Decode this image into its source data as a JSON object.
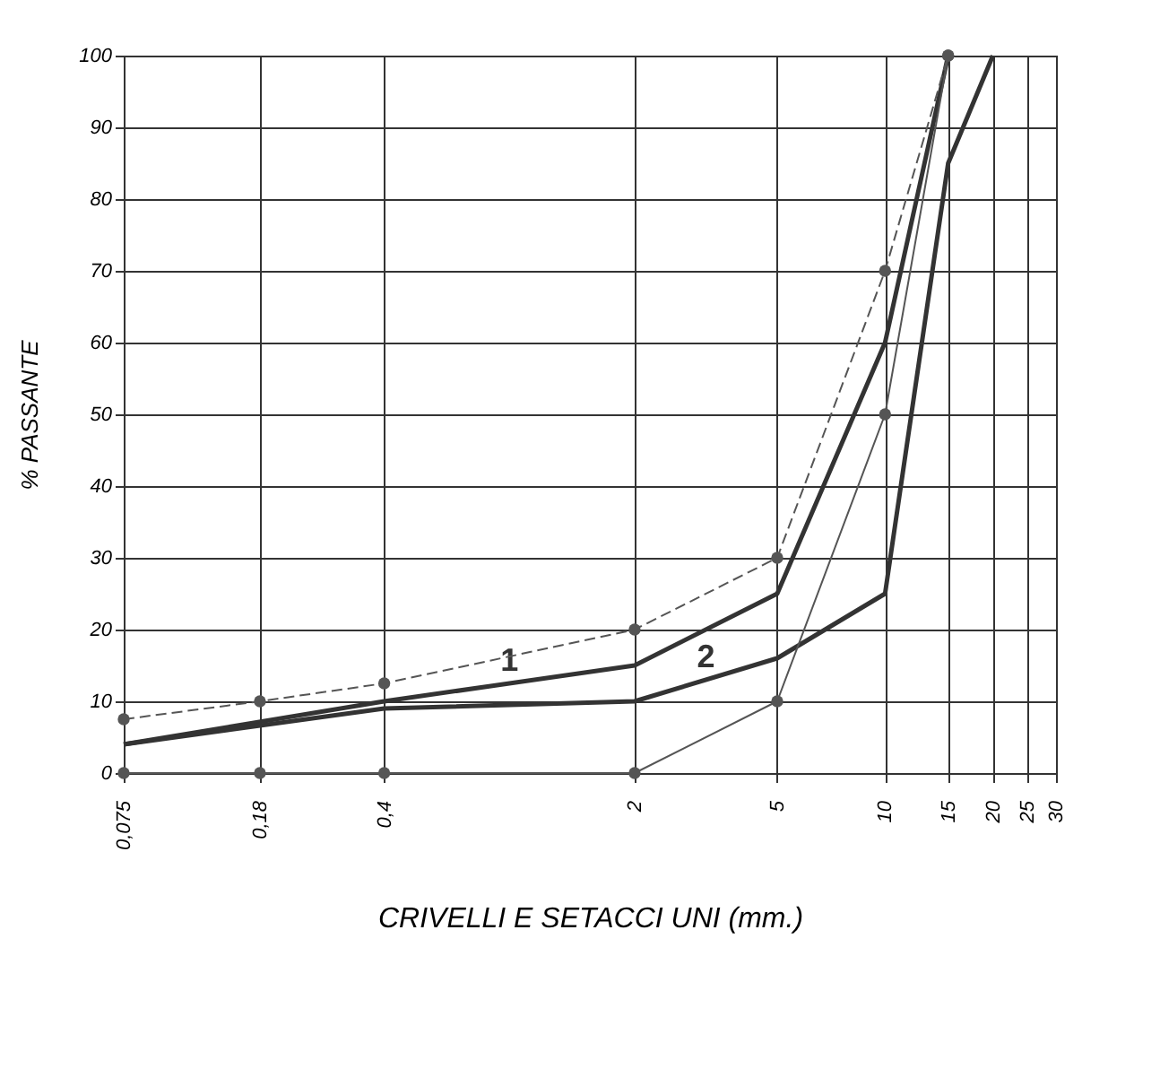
{
  "chart_data": {
    "type": "line",
    "xlabel": "CRIVELLI E SETACCI UNI (mm.)",
    "ylabel": "% PASSANTE",
    "log": "x",
    "grid": true,
    "legend": false,
    "xlim": [
      0.075,
      30
    ],
    "xticks": [
      {
        "value": 0.075,
        "label": "0,075"
      },
      {
        "value": 0.18,
        "label": "0,18"
      },
      {
        "value": 0.4,
        "label": "0,4"
      },
      2,
      5,
      10,
      15,
      20,
      25,
      30
    ],
    "ylim": [
      0,
      100
    ],
    "yticks": [
      0,
      10,
      20,
      30,
      40,
      50,
      60,
      70,
      80,
      90,
      100
    ],
    "series": [
      {
        "color": "#555555",
        "marker": "circle",
        "line_style": "dashed",
        "x": [
          0.075,
          0.18,
          0.4,
          2,
          5,
          10,
          15
        ],
        "values": [
          7.5,
          10,
          12.5,
          20,
          30,
          70,
          100
        ]
      },
      {
        "color": "#555555",
        "marker": "circle",
        "line_style": "solid",
        "x": [
          0.075,
          0.18,
          0.4,
          2,
          5,
          10,
          15
        ],
        "values": [
          0,
          0,
          0,
          0,
          10,
          50,
          100
        ]
      },
      {
        "name": "1",
        "color": "#333333",
        "marker": "none",
        "line_style": "solid",
        "x": [
          0.075,
          0.4,
          2,
          5,
          10,
          15
        ],
        "values": [
          4,
          10,
          15,
          25,
          60,
          100
        ]
      },
      {
        "name": "2",
        "color": "#333333",
        "marker": "none",
        "line_style": "solid",
        "x": [
          0.075,
          0.4,
          2,
          5,
          10,
          15,
          20
        ],
        "values": [
          4,
          9,
          10,
          16,
          25,
          85,
          100
        ]
      }
    ]
  }
}
